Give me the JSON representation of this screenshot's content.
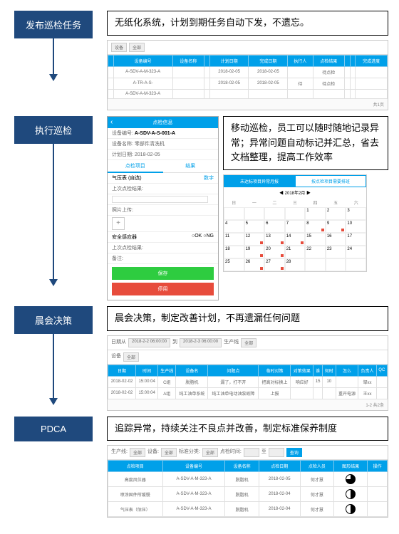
{
  "colors": {
    "step_bg": "#1f497d",
    "header_bg": "#00a0e9",
    "save_bg": "#2ecc40",
    "stop_bg": "#e74c3c"
  },
  "steps": [
    {
      "label": "发布巡检任务",
      "desc": "无纸化系统，计划到期任务自动下发，不遗忘。"
    },
    {
      "label": "执行巡检",
      "desc": "移动巡检，员工可以随时随地记录异常；异常问题自动标记并汇总，省去文档整理，提高工作效率"
    },
    {
      "label": "晨会决策",
      "desc": "晨会决策，制定改善计划，不再遗漏任何问题"
    },
    {
      "label": "PDCA",
      "desc": "追踪异常，持续关注不良点并改善，制定标准保养制度"
    }
  ],
  "ss1": {
    "filters": [
      "设备",
      "全部"
    ],
    "headers": [
      "",
      "设备编号",
      "设备名称",
      "",
      "计划日期",
      "完成日期",
      "执行人",
      "点检结果",
      "",
      "",
      "完成进度"
    ],
    "rows": [
      [
        "",
        "A-SDV-A-M-323-A",
        "",
        "",
        "2018-02-05",
        "2018-02-05",
        "",
        "待点检",
        "",
        "",
        ""
      ],
      [
        "",
        "A-TR-A-S-",
        "",
        "",
        "2018-02-05",
        "2018-02-05",
        "待",
        "待点检",
        "",
        "",
        ""
      ],
      [
        "",
        "A-SDV-A-M-323-A",
        "",
        "",
        "",
        "",
        "",
        "",
        "",
        "",
        ""
      ]
    ],
    "pager": "共1页"
  },
  "mobile": {
    "title": "点检信息",
    "dev_no_label": "设备编号:",
    "dev_no": "A-SDV-A-S-001-A",
    "dev_name_label": "设备名称: 零部件清洗机",
    "plan_date_label": "计划日期: 2018-02-05",
    "tab1": "点检项目",
    "tab2": "结果",
    "item1": "气压表 (自选)",
    "item1_unit": "数字",
    "field1": "上次点检结果:",
    "field2": "照片上传:",
    "item2": "安全感应器",
    "radio_ok": "OK",
    "radio_ng": "NG",
    "field3": "上次点检结果:",
    "note": "备注:",
    "save": "保存",
    "stop": "停用"
  },
  "cal": {
    "tab1": "未达标项目异常月报",
    "tab2": "按点检项目需要排班",
    "title": "2018年2月",
    "weekdays": [
      "日",
      "一",
      "二",
      "三",
      "四",
      "五",
      "六"
    ],
    "flags": [
      8,
      9,
      12,
      13,
      14,
      19,
      20,
      26,
      27
    ]
  },
  "ss3": {
    "filters_line1": [
      "日期从",
      "2018-2-2 06:00:00",
      "到",
      "2018-2-3 06:00:00",
      "生产线",
      "全部"
    ],
    "filters_line2": [
      "设备",
      "全部"
    ],
    "headers": [
      "日期",
      "时间",
      "生产线",
      "设备名",
      "问题点",
      "临时对策",
      "对策效果",
      "谁",
      "何时",
      "怎么",
      "负责人",
      "QC"
    ],
    "rows": [
      [
        "2018-02-02",
        "15:00:04",
        "C组",
        "脱脂机",
        "漏了，打不开",
        "把高对标换上",
        "响应好",
        "15",
        "10",
        "",
        "邹xx",
        ""
      ],
      [
        "2018-02-02",
        "15:00:04",
        "A组",
        "纯工油单系统",
        "纯工油单电动油泵故障",
        "上报",
        "",
        "",
        "",
        "重开电源",
        "王xx",
        ""
      ]
    ],
    "pager": "1-2 共2条"
  },
  "ss4": {
    "filters": [
      "生产线:",
      "全部",
      "设备:",
      "全部",
      "标准分类:",
      "全部",
      "点检时间:",
      "至",
      "",
      "查询"
    ],
    "headers": [
      "点检项目",
      "设备编号",
      "设备名称",
      "点检日期",
      "点检人员",
      "图形结果",
      "操作"
    ],
    "rows": [
      [
        "高度风位器",
        "A-SDV-A-M-323-A",
        "脱脂机",
        "2018-02-05",
        "何才慧",
        "pie-75",
        ""
      ],
      [
        "喷涂固件所缓慢",
        "A-SDV-A-M-323-A",
        "脱脂机",
        "2018-02-04",
        "何才慧",
        "pie-50",
        ""
      ],
      [
        "气压表（估压）",
        "A-SDV-A-M-323-A",
        "脱脂机",
        "2018-02-04",
        "何才慧",
        "pie-50",
        ""
      ]
    ]
  }
}
